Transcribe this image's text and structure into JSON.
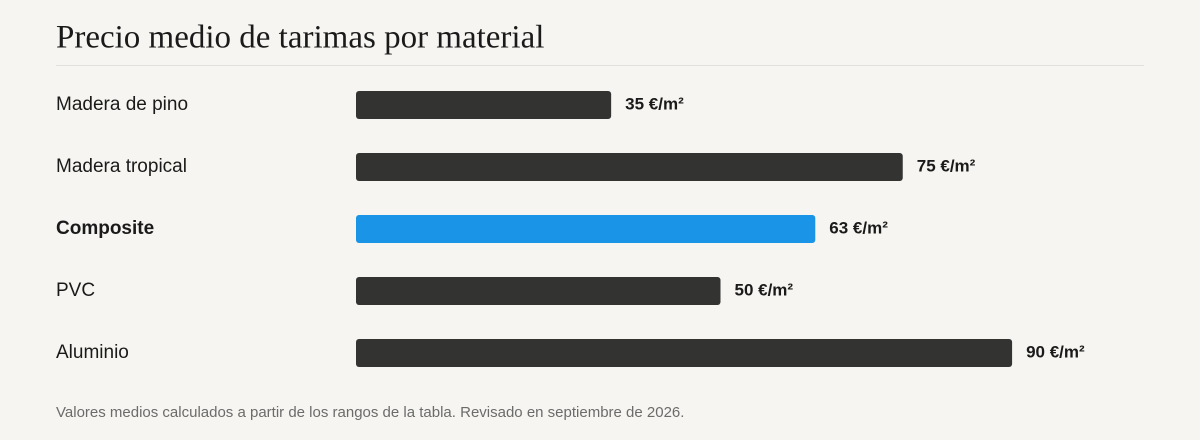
{
  "chart_data": {
    "type": "bar",
    "orientation": "horizontal",
    "title": "Precio medio de tarimas por material",
    "categories": [
      "Madera de pino",
      "Madera tropical",
      "Composite",
      "PVC",
      "Aluminio"
    ],
    "values": [
      35,
      75,
      63,
      50,
      90
    ],
    "value_labels": [
      "35 €/m²",
      "75 €/m²",
      "63 €/m²",
      "50 €/m²",
      "90 €/m²"
    ],
    "color": "#333432",
    "highlight": {
      "index": 2,
      "color": "#1994e6"
    },
    "note": "Valores medios calculados a partir de los rangos de la tabla. Revisado en septiembre de 2026."
  }
}
